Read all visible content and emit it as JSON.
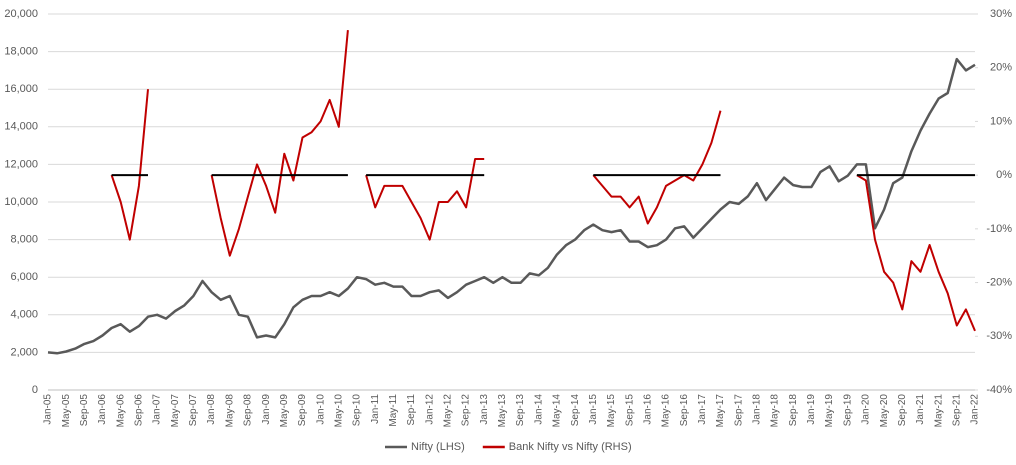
{
  "chart_data": {
    "type": "line",
    "categories": [
      "Jan-05",
      null,
      "May-05",
      null,
      "Sep-05",
      null,
      "Jan-06",
      null,
      "May-06",
      null,
      "Sep-06",
      null,
      "Jan-07",
      null,
      "May-07",
      null,
      "Sep-07",
      null,
      "Jan-08",
      null,
      "May-08",
      null,
      "Sep-08",
      null,
      "Jan-09",
      null,
      "May-09",
      null,
      "Sep-09",
      null,
      "Jan-10",
      null,
      "May-10",
      null,
      "Sep-10",
      null,
      "Jan-11",
      null,
      "May-11",
      null,
      "Sep-11",
      null,
      "Jan-12",
      null,
      "May-12",
      null,
      "Sep-12",
      null,
      "Jan-13",
      null,
      "May-13",
      null,
      "Sep-13",
      null,
      "Jan-14",
      null,
      "May-14",
      null,
      "Sep-14",
      null,
      "Jan-15",
      null,
      "May-15",
      null,
      "Sep-15",
      null,
      "Jan-16",
      null,
      "May-16",
      null,
      "Sep-16",
      null,
      "Jan-17",
      null,
      "May-17",
      null,
      "Sep-17",
      null,
      "Jan-18",
      null,
      "May-18",
      null,
      "Sep-18",
      null,
      "Jan-19",
      null,
      "May-19",
      null,
      "Sep-19",
      null,
      "Jan-20",
      null,
      "May-20",
      null,
      "Sep-20",
      null,
      "Jan-21",
      null,
      "May-21",
      null,
      "Sep-21",
      null,
      "Jan-22"
    ],
    "series": [
      {
        "name": "Nifty (LHS)",
        "color": "#595959",
        "width": 2.5,
        "values": [
          2000,
          1950,
          2050,
          2200,
          2450,
          2600,
          2900,
          3300,
          3500,
          3100,
          3400,
          3900,
          4000,
          3800,
          4200,
          4500,
          5000,
          5800,
          5200,
          4800,
          5000,
          4000,
          3900,
          2800,
          2900,
          2800,
          3500,
          4400,
          4800,
          5000,
          5000,
          5200,
          5000,
          5400,
          6000,
          5900,
          5600,
          5700,
          5500,
          5500,
          5000,
          5000,
          5200,
          5300,
          4900,
          5200,
          5600,
          5800,
          6000,
          5700,
          6000,
          5700,
          5700,
          6200,
          6100,
          6500,
          7200,
          7700,
          8000,
          8500,
          8800,
          8500,
          8400,
          8500,
          7900,
          7900,
          7600,
          7700,
          8000,
          8600,
          8700,
          8100,
          8600,
          9100,
          9600,
          10000,
          9900,
          10300,
          11000,
          10100,
          10700,
          11300,
          10900,
          10800,
          10800,
          11600,
          11900,
          11100,
          11400,
          12000,
          12000,
          8600,
          9600,
          11000,
          11300,
          12700,
          13800,
          14700,
          15500,
          15800,
          17600,
          17000,
          17300
        ]
      },
      {
        "name": "Bank Nifty vs Nifty (RHS)",
        "color": "#c00000",
        "width": 2,
        "axis": "y2",
        "values": [
          null,
          null,
          null,
          null,
          null,
          null,
          null,
          0,
          -5,
          -12,
          -2,
          16,
          null,
          null,
          null,
          null,
          null,
          null,
          0,
          -8,
          -15,
          -10,
          -4,
          2,
          -2,
          -7,
          4,
          -1,
          7,
          8,
          10,
          14,
          9,
          27,
          null,
          0,
          -6,
          -2,
          -2,
          -2,
          -5,
          -8,
          -12,
          -5,
          -5,
          -3,
          -6,
          3,
          3,
          null,
          null,
          null,
          null,
          null,
          null,
          null,
          null,
          null,
          null,
          null,
          0,
          -2,
          -4,
          -4,
          -6,
          -4,
          -9,
          -6,
          -2,
          -1,
          0,
          -1,
          2,
          6,
          12,
          null,
          null,
          null,
          null,
          null,
          null,
          null,
          null,
          null,
          null,
          null,
          null,
          null,
          null,
          0,
          -1,
          -12,
          -18,
          -20,
          -25,
          -16,
          -18,
          -13,
          -18,
          -22,
          -28,
          -25,
          -29
        ]
      },
      {
        "color": "#000000",
        "width": 2,
        "axis": "y2",
        "values": [
          null,
          null,
          null,
          null,
          null,
          null,
          null,
          0,
          0,
          0,
          0,
          0,
          null,
          null,
          null,
          null,
          null,
          null,
          0,
          0,
          0,
          0,
          0,
          0,
          0,
          0,
          0,
          0,
          0,
          0,
          0,
          0,
          0,
          0,
          null,
          0,
          0,
          0,
          0,
          0,
          0,
          0,
          0,
          0,
          0,
          0,
          0,
          0,
          0,
          null,
          null,
          null,
          null,
          null,
          null,
          null,
          null,
          null,
          null,
          null,
          0,
          0,
          0,
          0,
          0,
          0,
          0,
          0,
          0,
          0,
          0,
          0,
          0,
          0,
          0,
          null,
          null,
          null,
          null,
          null,
          null,
          null,
          null,
          null,
          null,
          null,
          null,
          null,
          null,
          0,
          0,
          0,
          0,
          0,
          0,
          0,
          0,
          0,
          0,
          0,
          0,
          0,
          0
        ]
      }
    ],
    "ylim": [
      0,
      20000
    ],
    "yticks": [
      0,
      {
        "value": 2000,
        "label": "2,000"
      },
      {
        "value": 4000,
        "label": "4,000"
      },
      {
        "value": 6000,
        "label": "6,000"
      },
      {
        "value": 8000,
        "label": "8,000"
      },
      {
        "value": 10000,
        "label": "10,000"
      },
      {
        "value": 12000,
        "label": "12,000"
      },
      {
        "value": 14000,
        "label": "14,000"
      },
      {
        "value": 16000,
        "label": "16,000"
      },
      {
        "value": 18000,
        "label": "18,000"
      },
      {
        "value": 20000,
        "label": "20,000"
      }
    ],
    "y2lim": [
      -40,
      30
    ],
    "y2ticks": [
      {
        "value": -40,
        "label": "-40%"
      },
      {
        "value": -30,
        "label": "-30%"
      },
      {
        "value": -20,
        "label": "-20%"
      },
      {
        "value": -10,
        "label": "-10%"
      },
      {
        "value": 0,
        "label": "0%"
      },
      {
        "value": 10,
        "label": "10%"
      },
      {
        "value": 20,
        "label": "20%"
      },
      {
        "value": 30,
        "label": "30%"
      }
    ],
    "grid": true,
    "legend": "bottom"
  }
}
